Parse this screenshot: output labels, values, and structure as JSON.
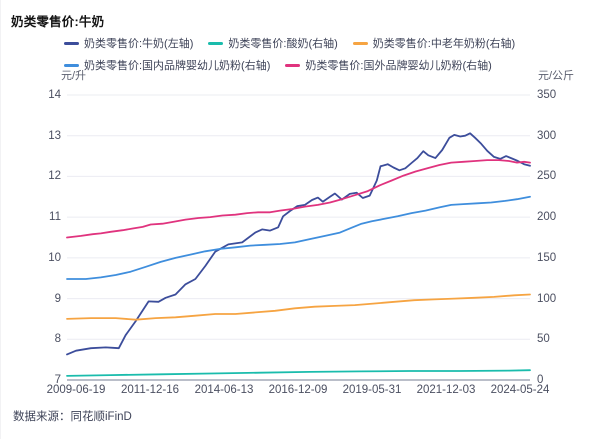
{
  "page": {
    "title": "奶类零售价:牛奶",
    "source_note": "数据来源：同花顺iFinD"
  },
  "colors": {
    "milk_navy": "#3C4D9B",
    "yogurt_teal": "#1ABCAC",
    "elderly_powder_orange": "#F6A442",
    "domestic_infant_blue": "#3F8EDD",
    "foreign_infant_pink": "#E0337E",
    "gridline": "#ebecf2",
    "axis_line": "#a4a8b7",
    "tick_text": "#4b4f61"
  },
  "chart_data": {
    "type": "line",
    "title": "奶类零售价:牛奶",
    "x_type": "time",
    "x_range": [
      2009.47,
      2024.4
    ],
    "x_tick_labels": [
      "2009-06-19",
      "2011-12-16",
      "2014-06-13",
      "2016-12-09",
      "2019-05-31",
      "2021-12-03",
      "2024-05-24"
    ],
    "grid": true,
    "legend_position": "top",
    "legend_rows": [
      [
        0,
        1,
        2
      ],
      [
        3,
        4
      ]
    ],
    "left_axis": {
      "unit": "元/升",
      "min": 7,
      "max": 14,
      "ticks": [
        14,
        13,
        12,
        11,
        10,
        9,
        8,
        7
      ]
    },
    "right_axis": {
      "unit": "元/公斤",
      "min": 0,
      "max": 350,
      "ticks": [
        350,
        300,
        250,
        200,
        150,
        100,
        50,
        0
      ]
    },
    "series": [
      {
        "name": "奶类零售价:牛奶(左轴)",
        "axis": "left",
        "color": "#3C4D9B",
        "points": [
          [
            2009.47,
            7.63
          ],
          [
            2009.76,
            7.72
          ],
          [
            2010.24,
            7.78
          ],
          [
            2010.72,
            7.8
          ],
          [
            2010.95,
            7.79
          ],
          [
            2011.14,
            7.78
          ],
          [
            2011.36,
            8.1
          ],
          [
            2011.69,
            8.45
          ],
          [
            2012.1,
            8.93
          ],
          [
            2012.42,
            8.92
          ],
          [
            2012.65,
            9.02
          ],
          [
            2012.97,
            9.1
          ],
          [
            2013.29,
            9.35
          ],
          [
            2013.61,
            9.48
          ],
          [
            2013.93,
            9.8
          ],
          [
            2014.25,
            10.15
          ],
          [
            2014.67,
            10.33
          ],
          [
            2015.12,
            10.38
          ],
          [
            2015.54,
            10.62
          ],
          [
            2015.76,
            10.7
          ],
          [
            2016.02,
            10.67
          ],
          [
            2016.28,
            10.75
          ],
          [
            2016.44,
            11.02
          ],
          [
            2016.66,
            11.15
          ],
          [
            2016.89,
            11.27
          ],
          [
            2017.14,
            11.3
          ],
          [
            2017.37,
            11.42
          ],
          [
            2017.56,
            11.48
          ],
          [
            2017.72,
            11.38
          ],
          [
            2017.95,
            11.5
          ],
          [
            2018.11,
            11.58
          ],
          [
            2018.33,
            11.43
          ],
          [
            2018.59,
            11.57
          ],
          [
            2018.81,
            11.6
          ],
          [
            2019.01,
            11.47
          ],
          [
            2019.23,
            11.53
          ],
          [
            2019.46,
            11.9
          ],
          [
            2019.58,
            12.25
          ],
          [
            2019.81,
            12.3
          ],
          [
            2020.0,
            12.22
          ],
          [
            2020.19,
            12.15
          ],
          [
            2020.38,
            12.2
          ],
          [
            2020.58,
            12.33
          ],
          [
            2020.77,
            12.45
          ],
          [
            2020.96,
            12.62
          ],
          [
            2021.12,
            12.52
          ],
          [
            2021.35,
            12.45
          ],
          [
            2021.57,
            12.65
          ],
          [
            2021.8,
            12.95
          ],
          [
            2021.96,
            13.02
          ],
          [
            2022.15,
            12.98
          ],
          [
            2022.31,
            13.0
          ],
          [
            2022.47,
            13.06
          ],
          [
            2022.63,
            12.95
          ],
          [
            2022.83,
            12.8
          ],
          [
            2023.02,
            12.63
          ],
          [
            2023.24,
            12.48
          ],
          [
            2023.44,
            12.43
          ],
          [
            2023.63,
            12.5
          ],
          [
            2023.82,
            12.44
          ],
          [
            2024.01,
            12.38
          ],
          [
            2024.21,
            12.3
          ],
          [
            2024.4,
            12.26
          ]
        ]
      },
      {
        "name": "奶类零售价:酸奶(右轴)",
        "axis": "right",
        "color": "#1ABCAC",
        "points": [
          [
            2009.47,
            5
          ],
          [
            2010.88,
            6
          ],
          [
            2012.49,
            7
          ],
          [
            2014.09,
            8
          ],
          [
            2015.7,
            9
          ],
          [
            2017.3,
            10
          ],
          [
            2018.91,
            10.5
          ],
          [
            2020.51,
            11
          ],
          [
            2022.12,
            11
          ],
          [
            2023.72,
            11.5
          ],
          [
            2024.4,
            12
          ]
        ]
      },
      {
        "name": "奶类零售价:中老年奶粉(右轴)",
        "axis": "right",
        "color": "#F6A442",
        "points": [
          [
            2009.47,
            75
          ],
          [
            2010.24,
            76
          ],
          [
            2011.04,
            76
          ],
          [
            2011.69,
            74
          ],
          [
            2012.33,
            76
          ],
          [
            2012.97,
            77
          ],
          [
            2013.61,
            79
          ],
          [
            2014.25,
            81
          ],
          [
            2014.9,
            81
          ],
          [
            2015.54,
            83
          ],
          [
            2016.18,
            85
          ],
          [
            2016.82,
            88
          ],
          [
            2017.46,
            90
          ],
          [
            2018.11,
            91
          ],
          [
            2018.75,
            92
          ],
          [
            2019.39,
            94
          ],
          [
            2020.03,
            96
          ],
          [
            2020.67,
            98
          ],
          [
            2021.31,
            99
          ],
          [
            2021.96,
            100
          ],
          [
            2022.6,
            101
          ],
          [
            2023.24,
            102
          ],
          [
            2023.89,
            104
          ],
          [
            2024.4,
            105
          ]
        ]
      },
      {
        "name": "奶类零售价:国内品牌婴幼儿奶粉(右轴)",
        "axis": "right",
        "color": "#3F8EDD",
        "points": [
          [
            2009.47,
            124
          ],
          [
            2010.08,
            124
          ],
          [
            2010.56,
            126
          ],
          [
            2011.04,
            129
          ],
          [
            2011.52,
            133
          ],
          [
            2012.01,
            139
          ],
          [
            2012.49,
            145
          ],
          [
            2012.97,
            150
          ],
          [
            2013.45,
            154
          ],
          [
            2013.93,
            158
          ],
          [
            2014.41,
            161
          ],
          [
            2014.9,
            163
          ],
          [
            2015.38,
            165
          ],
          [
            2015.86,
            166
          ],
          [
            2016.34,
            167
          ],
          [
            2016.82,
            169
          ],
          [
            2017.3,
            173
          ],
          [
            2017.79,
            177
          ],
          [
            2018.27,
            181
          ],
          [
            2018.65,
            187
          ],
          [
            2018.97,
            192
          ],
          [
            2019.3,
            195
          ],
          [
            2019.71,
            198
          ],
          [
            2020.13,
            201
          ],
          [
            2020.58,
            205
          ],
          [
            2021.03,
            208
          ],
          [
            2021.48,
            212
          ],
          [
            2021.86,
            215
          ],
          [
            2022.25,
            216
          ],
          [
            2022.7,
            217
          ],
          [
            2023.15,
            218
          ],
          [
            2023.6,
            220
          ],
          [
            2023.98,
            222
          ],
          [
            2024.4,
            225
          ]
        ]
      },
      {
        "name": "奶类零售价:国外品牌婴幼儿奶粉(右轴)",
        "axis": "right",
        "color": "#E0337E",
        "points": [
          [
            2009.47,
            175
          ],
          [
            2009.92,
            177
          ],
          [
            2010.3,
            179
          ],
          [
            2010.56,
            180
          ],
          [
            2010.88,
            182
          ],
          [
            2011.27,
            184
          ],
          [
            2011.59,
            186
          ],
          [
            2011.91,
            188
          ],
          [
            2012.17,
            191
          ],
          [
            2012.55,
            192
          ],
          [
            2012.87,
            194
          ],
          [
            2013.29,
            197
          ],
          [
            2013.71,
            199
          ],
          [
            2014.09,
            200
          ],
          [
            2014.48,
            202
          ],
          [
            2014.9,
            203
          ],
          [
            2015.28,
            205
          ],
          [
            2015.63,
            206
          ],
          [
            2016.02,
            206
          ],
          [
            2016.34,
            208
          ],
          [
            2016.73,
            210
          ],
          [
            2017.14,
            213
          ],
          [
            2017.56,
            215
          ],
          [
            2017.95,
            218
          ],
          [
            2018.33,
            222
          ],
          [
            2018.75,
            227
          ],
          [
            2019.17,
            232
          ],
          [
            2019.55,
            239
          ],
          [
            2019.94,
            245
          ],
          [
            2020.32,
            251
          ],
          [
            2020.71,
            256
          ],
          [
            2021.09,
            260
          ],
          [
            2021.48,
            264
          ],
          [
            2021.86,
            267
          ],
          [
            2022.25,
            268
          ],
          [
            2022.63,
            269
          ],
          [
            2023.02,
            270
          ],
          [
            2023.4,
            270
          ],
          [
            2023.72,
            269
          ],
          [
            2023.98,
            267
          ],
          [
            2024.21,
            268
          ],
          [
            2024.4,
            267
          ]
        ]
      }
    ]
  }
}
